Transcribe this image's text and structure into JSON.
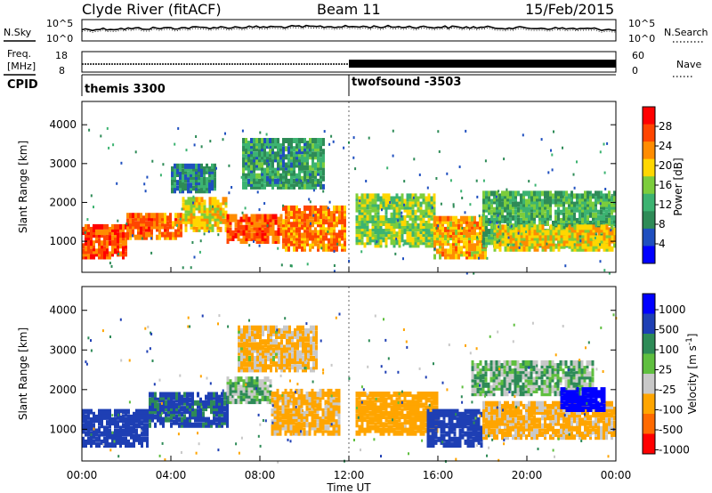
{
  "header": {
    "station": "Clyde River (fitACF)",
    "beam": "Beam 11",
    "date": "15/Feb/2015"
  },
  "noise_panel": {
    "left_label": "N.Sky",
    "left_tick_top": "10^5",
    "left_tick_bottom": "10^0",
    "right_label": "N.Search",
    "right_tick_top": "10^5",
    "right_tick_bottom": "10^0"
  },
  "freq_panel": {
    "left_label_1": "Freq.",
    "left_label_2": "[MHz]",
    "left_tick_top": "18",
    "left_tick_bottom": "8",
    "right_label": "Nave",
    "right_tick_top": "60",
    "right_tick_bottom": "0"
  },
  "cpid_panel": {
    "label": "CPID",
    "programs": [
      {
        "name": "themis 3300",
        "start_hour": 0
      },
      {
        "name": "twofsound -3503",
        "start_hour": 12
      }
    ]
  },
  "colors": {
    "power_scale": [
      "#0000ff",
      "#1f4fbf",
      "#2e8b57",
      "#3cb371",
      "#7ccd3c",
      "#ffd700",
      "#ff8c00",
      "#ff4500",
      "#ff0000"
    ],
    "velocity_scale": [
      "#0000ff",
      "#1e3fb4",
      "#2e8b57",
      "#5fbf3f",
      "#c8c8c8",
      "#ffa500",
      "#ff6a00",
      "#ff0000"
    ],
    "axis": "#000000"
  },
  "chart_data": [
    {
      "type": "heatmap",
      "title": "",
      "xlabel": "Time UT",
      "ylabel": "Slant Range [km]",
      "xlim": [
        0,
        24
      ],
      "ylim": [
        200,
        4600
      ],
      "x_ticks": [
        "00:00",
        "04:00",
        "08:00",
        "12:00",
        "16:00",
        "20:00",
        "00:00"
      ],
      "x_tick_hours": [
        0,
        4,
        8,
        12,
        16,
        20,
        24
      ],
      "y_ticks": [
        1000,
        2000,
        3000,
        4000
      ],
      "colorbar": {
        "label": "Power [dB]",
        "ticks": [
          "4",
          "8",
          "12",
          "16",
          "20",
          "24",
          "28"
        ],
        "range": [
          0,
          32
        ]
      },
      "echo_regions": [
        {
          "t0": 0.0,
          "t1": 2.0,
          "r0": 600,
          "r1": 1400,
          "level": 30
        },
        {
          "t0": 2.0,
          "t1": 4.5,
          "r0": 1100,
          "r1": 1700,
          "level": 28
        },
        {
          "t0": 4.5,
          "t1": 6.5,
          "r0": 1300,
          "r1": 2100,
          "level": 22
        },
        {
          "t0": 6.5,
          "t1": 9.0,
          "r0": 1000,
          "r1": 1700,
          "level": 29
        },
        {
          "t0": 9.0,
          "t1": 11.8,
          "r0": 800,
          "r1": 1900,
          "level": 27
        },
        {
          "t0": 4.0,
          "t1": 6.0,
          "r0": 2300,
          "r1": 3000,
          "level": 10
        },
        {
          "t0": 7.2,
          "t1": 10.8,
          "r0": 2400,
          "r1": 3600,
          "level": 12
        },
        {
          "t0": 12.3,
          "t1": 15.8,
          "r0": 900,
          "r1": 2200,
          "level": 18
        },
        {
          "t0": 15.8,
          "t1": 18.2,
          "r0": 600,
          "r1": 1600,
          "level": 24
        },
        {
          "t0": 18.0,
          "t1": 24.0,
          "r0": 900,
          "r1": 2300,
          "level": 14
        },
        {
          "t0": 18.5,
          "t1": 24.0,
          "r0": 800,
          "r1": 1400,
          "level": 22
        }
      ]
    },
    {
      "type": "heatmap",
      "title": "",
      "xlabel": "Time UT",
      "ylabel": "Slant Range [km]",
      "xlim": [
        0,
        24
      ],
      "ylim": [
        200,
        4600
      ],
      "x_ticks": [
        "00:00",
        "04:00",
        "08:00",
        "12:00",
        "16:00",
        "20:00",
        "00:00"
      ],
      "x_tick_hours": [
        0,
        4,
        8,
        12,
        16,
        20,
        24
      ],
      "y_ticks": [
        1000,
        2000,
        3000,
        4000
      ],
      "colorbar": {
        "label": "Velocity [m s-1]",
        "ticks": [
          "1000",
          "500",
          "100",
          "25",
          "-25",
          "-100",
          "-500",
          "-1000"
        ]
      },
      "echo_regions": [
        {
          "t0": 0.0,
          "t1": 3.0,
          "r0": 600,
          "r1": 1500,
          "velocity": 300
        },
        {
          "t0": 3.0,
          "t1": 6.5,
          "r0": 1100,
          "r1": 1900,
          "velocity": 150
        },
        {
          "t0": 6.5,
          "t1": 8.5,
          "r0": 1700,
          "r1": 2300,
          "velocity": 0
        },
        {
          "t0": 8.5,
          "t1": 11.5,
          "r0": 900,
          "r1": 2000,
          "velocity": -150
        },
        {
          "t0": 7.0,
          "t1": 10.5,
          "r0": 2500,
          "r1": 3600,
          "velocity": -120
        },
        {
          "t0": 12.3,
          "t1": 16.0,
          "r0": 900,
          "r1": 1900,
          "velocity": -200
        },
        {
          "t0": 15.5,
          "t1": 18.0,
          "r0": 600,
          "r1": 1500,
          "velocity": 200
        },
        {
          "t0": 18.0,
          "t1": 24.0,
          "r0": 800,
          "r1": 1700,
          "velocity": -150
        },
        {
          "t0": 17.5,
          "t1": 23.0,
          "r0": 1900,
          "r1": 2700,
          "velocity": 0
        },
        {
          "t0": 21.5,
          "t1": 23.5,
          "r0": 1500,
          "r1": 2000,
          "velocity": 700
        }
      ]
    }
  ]
}
